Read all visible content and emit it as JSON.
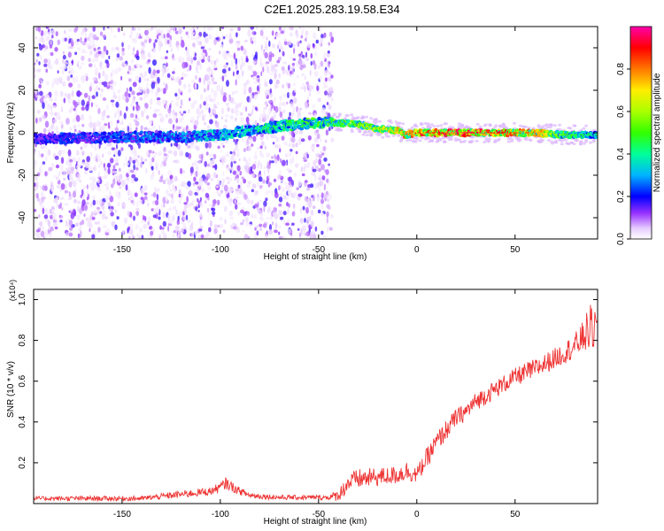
{
  "figure_title": "C2E1.2025.283.19.58.E34",
  "chart_data": [
    {
      "type": "heatmap",
      "title": "C2E1.2025.283.19.58.E34",
      "xlabel": "Height of straight line (km)",
      "ylabel": "Frequency (Hz)",
      "xlim": [
        -195,
        92
      ],
      "ylim": [
        -50,
        50
      ],
      "x_ticks": [
        -150,
        -100,
        -50,
        0,
        50
      ],
      "x_tick_labels": [
        "-150",
        "-100",
        "-50",
        "0",
        "50"
      ],
      "y_ticks": [
        -40,
        -20,
        0,
        20,
        40
      ],
      "y_tick_labels": [
        "-40",
        "-20",
        "0",
        "20",
        "40"
      ],
      "colorbar": {
        "label": "Normalized spectral amplitude",
        "range": [
          0,
          1
        ],
        "ticks": [
          0,
          0.2,
          0.4,
          0.6,
          0.8
        ],
        "tick_labels": [
          "0.0",
          "0.2",
          "0.4",
          "0.6",
          "0.8"
        ],
        "colormap": [
          "#ffffff",
          "#cc99ff",
          "#7700ff",
          "#0000ff",
          "#00ccff",
          "#00ff66",
          "#aaff00",
          "#ffff00",
          "#ff8800",
          "#ff0000",
          "#ff00aa"
        ]
      },
      "ridge": {
        "x": [
          -195,
          -150,
          -120,
          -100,
          -80,
          -60,
          -45,
          -30,
          -20,
          -10,
          -5,
          0,
          20,
          40,
          60,
          75,
          92
        ],
        "frequency_hz": [
          -3,
          -2,
          -2,
          -1,
          2,
          4,
          5,
          4,
          2,
          1,
          -1,
          0,
          0,
          0,
          0,
          -1,
          -1
        ],
        "amplitude": [
          0.2,
          0.25,
          0.3,
          0.35,
          0.4,
          0.45,
          0.5,
          0.55,
          0.6,
          0.7,
          0.75,
          0.8,
          0.9,
          0.85,
          0.75,
          0.5,
          0.4
        ]
      },
      "broadband_scatter_until_km": -43
    },
    {
      "type": "line",
      "xlabel": "Height of straight line (km)",
      "ylabel": "SNR (10 * v/v)",
      "y_scale_label": "(x10⁴)",
      "xlim": [
        -195,
        92
      ],
      "ylim": [
        0,
        1.05
      ],
      "x_ticks": [
        -150,
        -100,
        -50,
        0,
        50
      ],
      "x_tick_labels": [
        "-150",
        "-100",
        "-50",
        "0",
        "50"
      ],
      "y_ticks": [
        0.2,
        0.4,
        0.6,
        0.8,
        1.0
      ],
      "y_tick_labels": [
        "0.2",
        "0.4",
        "0.6",
        "0.8",
        "1.0"
      ],
      "line_color": "#ee3333",
      "series": [
        {
          "name": "SNR",
          "x": [
            -195,
            -170,
            -140,
            -130,
            -120,
            -105,
            -100,
            -97,
            -92,
            -85,
            -70,
            -55,
            -45,
            -40,
            -35,
            -30,
            -20,
            -10,
            -5,
            0,
            5,
            10,
            15,
            20,
            25,
            30,
            40,
            50,
            60,
            70,
            80,
            85,
            88,
            92
          ],
          "y": [
            0.025,
            0.025,
            0.025,
            0.035,
            0.045,
            0.06,
            0.08,
            0.1,
            0.07,
            0.04,
            0.03,
            0.03,
            0.03,
            0.04,
            0.1,
            0.12,
            0.13,
            0.14,
            0.16,
            0.14,
            0.22,
            0.3,
            0.36,
            0.42,
            0.45,
            0.5,
            0.56,
            0.62,
            0.66,
            0.71,
            0.77,
            0.82,
            0.86,
            0.85
          ],
          "noise": [
            0.01,
            0.012,
            0.012,
            0.015,
            0.018,
            0.02,
            0.025,
            0.03,
            0.02,
            0.015,
            0.012,
            0.012,
            0.012,
            0.03,
            0.045,
            0.05,
            0.045,
            0.045,
            0.05,
            0.04,
            0.05,
            0.05,
            0.05,
            0.045,
            0.045,
            0.045,
            0.045,
            0.045,
            0.05,
            0.05,
            0.06,
            0.08,
            0.12,
            0.1
          ]
        }
      ]
    }
  ]
}
